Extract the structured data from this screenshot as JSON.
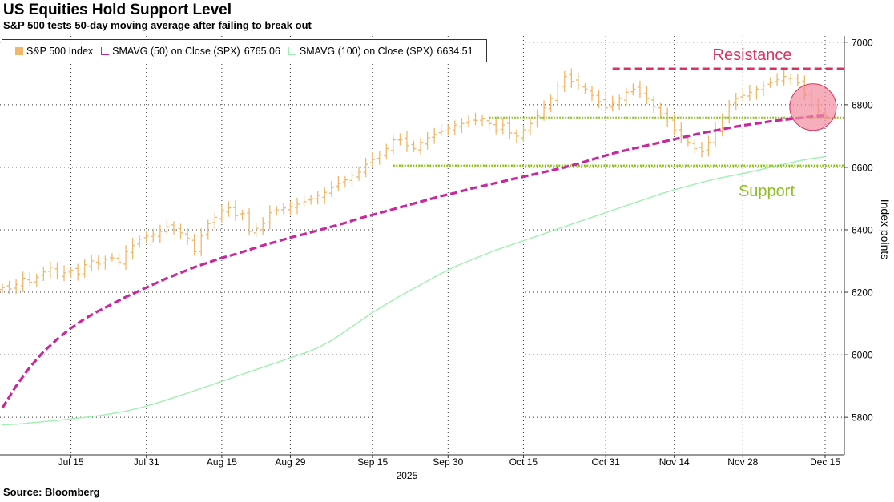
{
  "header": {
    "title": "US Equities Hold Support Level",
    "subtitle": "S&P 500 tests 50-day moving average after failing to break out"
  },
  "footer": {
    "source": "Source: Bloomberg"
  },
  "colors": {
    "price": "#f0b76a",
    "sma50": "#c8289e",
    "sma100": "#9ef0b0",
    "resistance": "#d6335e",
    "support": "#8cc020",
    "circle_fill": "#f28aa0",
    "circle_stroke": "#d6335e",
    "grid": "#333333"
  },
  "legend": {
    "items": [
      {
        "label": "S&P 500 Index",
        "value": "",
        "color": "#f0b76a",
        "kind": "ohlc"
      },
      {
        "label": "SMAVG (50)  on Close (SPX)",
        "value": "6765.06",
        "color": "#c8289e",
        "kind": "ma"
      },
      {
        "label": "SMAVG (100)  on Close (SPX)",
        "value": "6634.51",
        "color": "#9ef0b0",
        "kind": "ma"
      }
    ]
  },
  "chart_data": {
    "type": "line",
    "title": "US Equities Hold Support Level",
    "subtitle": "S&P 500 tests 50-day moving average after failing to break out",
    "ylabel": "Index points",
    "xlabel": "",
    "year_label": "2025",
    "ylim": [
      5680,
      7020
    ],
    "y_ticks": [
      5800,
      6000,
      6200,
      6400,
      6600,
      6800,
      7000
    ],
    "x_ticks": [
      "Jul 15",
      "Jul 31",
      "Aug 15",
      "Aug 29",
      "Sep 15",
      "Sep 30",
      "Oct 15",
      "Oct 31",
      "Nov 14",
      "Nov 28",
      "Dec 15"
    ],
    "x_tick_index": [
      10,
      21,
      32,
      42,
      54,
      65,
      76,
      88,
      98,
      108,
      120
    ],
    "grid": true,
    "legend_position": "top-left",
    "annotations": [
      {
        "label": "Resistance",
        "level": 6915,
        "start_index": 89,
        "style": "dashed"
      },
      {
        "label": "Support",
        "level": 6758,
        "start_index": 71,
        "style": "dotted"
      },
      {
        "label": "",
        "level": 6605,
        "start_index": 57,
        "style": "dotted"
      },
      {
        "label": "Support",
        "kind": "text"
      }
    ],
    "highlight": {
      "index": 118,
      "value": 6785
    },
    "series": [
      {
        "name": "S&P 500 Index",
        "kind": "ohlc",
        "close": [
          6215,
          6210,
          6225,
          6245,
          6232,
          6248,
          6265,
          6280,
          6255,
          6262,
          6270,
          6258,
          6288,
          6300,
          6290,
          6305,
          6310,
          6296,
          6330,
          6350,
          6370,
          6380,
          6385,
          6395,
          6410,
          6400,
          6390,
          6372,
          6330,
          6380,
          6420,
          6440,
          6462,
          6470,
          6445,
          6452,
          6395,
          6405,
          6420,
          6455,
          6464,
          6470,
          6475,
          6482,
          6490,
          6500,
          6510,
          6520,
          6535,
          6548,
          6560,
          6575,
          6585,
          6610,
          6625,
          6640,
          6660,
          6688,
          6688,
          6670,
          6660,
          6680,
          6695,
          6705,
          6715,
          6725,
          6735,
          6740,
          6745,
          6750,
          6755,
          6740,
          6718,
          6735,
          6710,
          6700,
          6720,
          6740,
          6765,
          6790,
          6820,
          6860,
          6890,
          6875,
          6860,
          6850,
          6830,
          6810,
          6790,
          6805,
          6820,
          6840,
          6850,
          6835,
          6820,
          6795,
          6770,
          6745,
          6720,
          6700,
          6680,
          6660,
          6650,
          6680,
          6720,
          6760,
          6800,
          6820,
          6830,
          6840,
          6850,
          6860,
          6870,
          6880,
          6890,
          6885,
          6870,
          6830,
          6800,
          6780,
          6765
        ]
      },
      {
        "name": "SMAVG (50)  on Close (SPX)",
        "values": [
          5830,
          5900,
          5960,
          6010,
          6050,
          6085,
          6115,
          6140,
          6162,
          6185,
          6205,
          6225,
          6245,
          6262,
          6280,
          6295,
          6310,
          6322,
          6336,
          6350,
          6362,
          6375,
          6386,
          6398,
          6410,
          6422,
          6436,
          6448,
          6460,
          6472,
          6484,
          6496,
          6508,
          6518,
          6530,
          6540,
          6550,
          6560,
          6570,
          6580,
          6590,
          6600,
          6612,
          6625,
          6638,
          6650,
          6660,
          6670,
          6680,
          6690,
          6700,
          6710,
          6718,
          6726,
          6734,
          6740,
          6747,
          6752,
          6757,
          6762,
          6765
        ],
        "x_step": 2
      },
      {
        "name": "SMAVG (100)  on Close (SPX)",
        "values": [
          5776,
          5778,
          5782,
          5786,
          5790,
          5795,
          5800,
          5805,
          5812,
          5820,
          5830,
          5842,
          5856,
          5870,
          5885,
          5900,
          5915,
          5930,
          5945,
          5960,
          5975,
          5990,
          6005,
          6022,
          6045,
          6075,
          6105,
          6135,
          6162,
          6188,
          6212,
          6236,
          6260,
          6282,
          6300,
          6318,
          6335,
          6350,
          6365,
          6380,
          6395,
          6410,
          6425,
          6440,
          6455,
          6470,
          6485,
          6500,
          6515,
          6528,
          6540,
          6552,
          6563,
          6572,
          6580,
          6590,
          6600,
          6610,
          6620,
          6628,
          6634
        ],
        "x_step": 2
      }
    ]
  }
}
